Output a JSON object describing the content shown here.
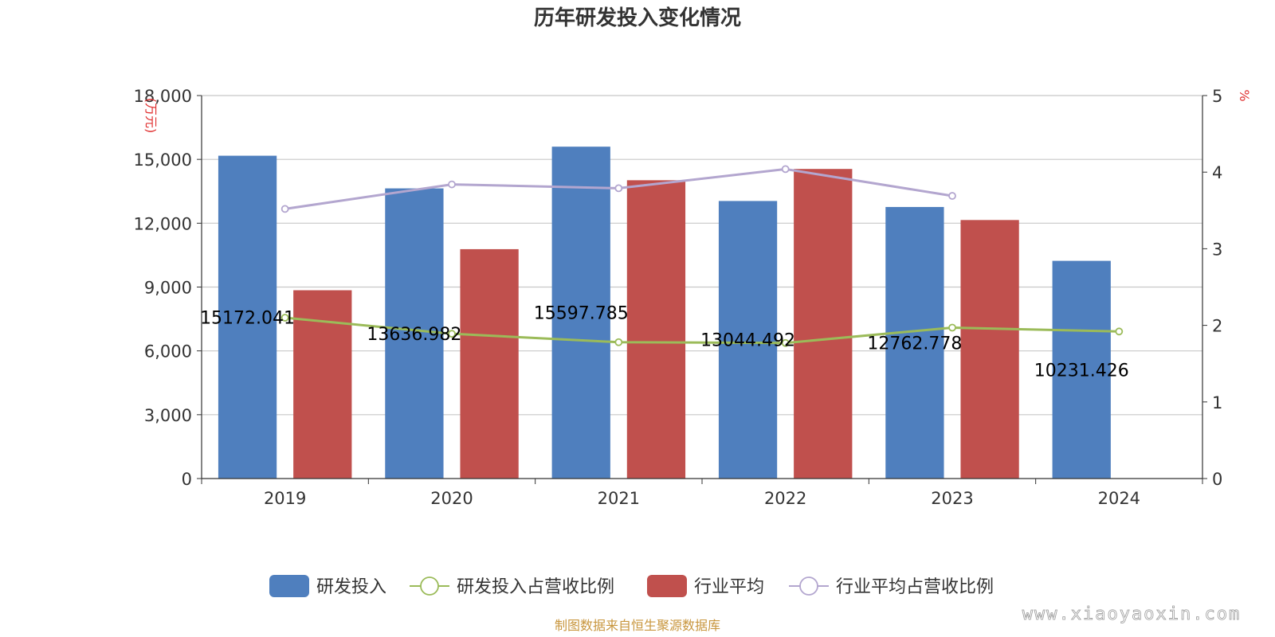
{
  "chart_data": {
    "type": "bar",
    "title": "历年研发投入变化情况",
    "categories": [
      "2019",
      "2020",
      "2021",
      "2022",
      "2023",
      "2024"
    ],
    "left_axis": {
      "unit": "(万元)",
      "ylim": [
        0,
        18000
      ],
      "ticks": [
        "0",
        "3,000",
        "6,000",
        "9,000",
        "12,000",
        "15,000",
        "18,000"
      ]
    },
    "right_axis": {
      "unit": "%",
      "ylim": [
        0,
        5
      ],
      "ticks": [
        "0",
        "1",
        "2",
        "3",
        "4",
        "5"
      ]
    },
    "series": [
      {
        "name": "研发投入",
        "kind": "bar",
        "axis": "left",
        "color": "#4f7fbe",
        "values": [
          15172.041,
          13636.982,
          15597.785,
          13044.492,
          12762.778,
          10231.426
        ],
        "labels": [
          "15172.041",
          "13636.982",
          "15597.785",
          "13044.492",
          "12762.778",
          "10231.426"
        ]
      },
      {
        "name": "研发投入占营收比例",
        "kind": "line",
        "axis": "right",
        "color": "#9bbb59",
        "values": [
          2.1,
          1.89,
          1.78,
          1.77,
          1.97,
          1.92
        ]
      },
      {
        "name": "行业平均",
        "kind": "bar",
        "axis": "left",
        "color": "#c0504d",
        "values": [
          8850,
          10780,
          14020,
          14550,
          12150,
          null
        ]
      },
      {
        "name": "行业平均占营收比例",
        "kind": "line",
        "axis": "right",
        "color": "#b3a6cf",
        "values": [
          3.52,
          3.84,
          3.79,
          4.04,
          3.69,
          null
        ]
      }
    ],
    "grid": true,
    "legend_position": "bottom"
  },
  "source_note": "制图数据来自恒生聚源数据库",
  "watermark": "www.xiaoyaoxin.com"
}
